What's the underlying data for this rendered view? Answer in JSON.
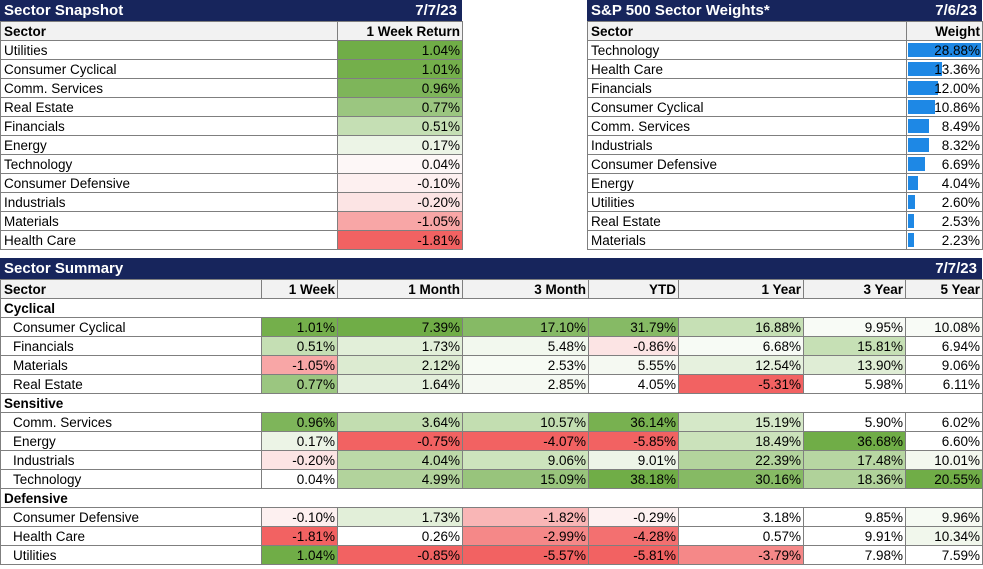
{
  "snapshot": {
    "title": "Sector Snapshot",
    "date": "7/7/23",
    "col_sector": "Sector",
    "col_return": "1 Week Return",
    "rows": [
      {
        "sector": "Utilities",
        "ret": "1.04%",
        "color": "#70ad47"
      },
      {
        "sector": "Consumer Cyclical",
        "ret": "1.01%",
        "color": "#74af4b"
      },
      {
        "sector": "Comm. Services",
        "ret": "0.96%",
        "color": "#7eb55a"
      },
      {
        "sector": "Real Estate",
        "ret": "0.77%",
        "color": "#9bc680"
      },
      {
        "sector": "Financials",
        "ret": "0.51%",
        "color": "#c5dfb4"
      },
      {
        "sector": "Energy",
        "ret": "0.17%",
        "color": "#ecf4e6"
      },
      {
        "sector": "Technology",
        "ret": "0.04%",
        "color": "#fdf7f7"
      },
      {
        "sector": "Consumer Defensive",
        "ret": "-0.10%",
        "color": "#fdf0f0"
      },
      {
        "sector": "Industrials",
        "ret": "-0.20%",
        "color": "#fce4e4"
      },
      {
        "sector": "Materials",
        "ret": "-1.05%",
        "color": "#f8a6a6"
      },
      {
        "sector": "Health Care",
        "ret": "-1.81%",
        "color": "#f26262"
      }
    ]
  },
  "weights": {
    "title": "S&P 500 Sector Weights*",
    "date": "7/6/23",
    "col_sector": "Sector",
    "col_weight": "Weight",
    "bar_color": "#1e88e5",
    "rows": [
      {
        "sector": "Technology",
        "weight": "28.88%",
        "value": 28.88
      },
      {
        "sector": "Health Care",
        "weight": "13.36%",
        "value": 13.36
      },
      {
        "sector": "Financials",
        "weight": "12.00%",
        "value": 12.0
      },
      {
        "sector": "Consumer Cyclical",
        "weight": "10.86%",
        "value": 10.86
      },
      {
        "sector": "Comm. Services",
        "weight": "8.49%",
        "value": 8.49
      },
      {
        "sector": "Industrials",
        "weight": "8.32%",
        "value": 8.32
      },
      {
        "sector": "Consumer Defensive",
        "weight": "6.69%",
        "value": 6.69
      },
      {
        "sector": "Energy",
        "weight": "4.04%",
        "value": 4.04
      },
      {
        "sector": "Utilities",
        "weight": "2.60%",
        "value": 2.6
      },
      {
        "sector": "Real Estate",
        "weight": "2.53%",
        "value": 2.53
      },
      {
        "sector": "Materials",
        "weight": "2.23%",
        "value": 2.23
      }
    ]
  },
  "summary": {
    "title": "Sector Summary",
    "date": "7/7/23",
    "headers": [
      "Sector",
      "1 Week",
      "1 Month",
      "3 Month",
      "YTD",
      "1 Year",
      "3 Year",
      "5 Year"
    ],
    "groups": [
      {
        "name": "Cyclical",
        "rows": [
          {
            "sector": "Consumer Cyclical",
            "values": [
              "1.01%",
              "7.39%",
              "17.10%",
              "31.79%",
              "16.88%",
              "9.95%",
              "10.08%"
            ],
            "colors": [
              "#74af4b",
              "#70ad47",
              "#86ba65",
              "#86ba65",
              "#c6e0b5",
              "#f8fbf6",
              "#f8fbf6"
            ]
          },
          {
            "sector": "Financials",
            "values": [
              "0.51%",
              "1.73%",
              "5.48%",
              "-0.86%",
              "6.68%",
              "15.81%",
              "6.94%"
            ],
            "colors": [
              "#c5dfb4",
              "#e2efd9",
              "#f2f8ee",
              "#fce4e4",
              "#f7fbf5",
              "#c6e0b5",
              "#ffffff"
            ]
          },
          {
            "sector": "Materials",
            "values": [
              "-1.05%",
              "2.12%",
              "2.53%",
              "5.55%",
              "12.54%",
              "13.90%",
              "9.06%"
            ],
            "colors": [
              "#f8a6a6",
              "#dcebd1",
              "#f7fbf4",
              "#f5f9f2",
              "#e6f1de",
              "#dfedd5",
              "#ffffff"
            ]
          },
          {
            "sector": "Real Estate",
            "values": [
              "0.77%",
              "1.64%",
              "2.85%",
              "4.05%",
              "-5.31%",
              "5.98%",
              "6.11%"
            ],
            "colors": [
              "#9bc680",
              "#e3efdb",
              "#f5f9f2",
              "#ffffff",
              "#f26262",
              "#ffffff",
              "#ffffff"
            ]
          }
        ]
      },
      {
        "name": "Sensitive",
        "rows": [
          {
            "sector": "Comm. Services",
            "values": [
              "0.96%",
              "3.64%",
              "10.57%",
              "36.14%",
              "15.19%",
              "5.90%",
              "6.02%"
            ],
            "colors": [
              "#7eb55a",
              "#c2ddb0",
              "#c3deb1",
              "#78b150",
              "#d5e8c8",
              "#ffffff",
              "#ffffff"
            ]
          },
          {
            "sector": "Energy",
            "values": [
              "0.17%",
              "-0.75%",
              "-4.07%",
              "-5.85%",
              "18.49%",
              "36.68%",
              "6.60%"
            ],
            "colors": [
              "#ecf4e6",
              "#f26262",
              "#f26262",
              "#f26262",
              "#cbe2bb",
              "#70ad47",
              "#ffffff"
            ]
          },
          {
            "sector": "Industrials",
            "values": [
              "-0.20%",
              "4.04%",
              "9.06%",
              "9.01%",
              "22.39%",
              "17.48%",
              "10.01%"
            ],
            "colors": [
              "#fce4e4",
              "#bcd9a8",
              "#cde4bd",
              "#edf5e8",
              "#b3d49d",
              "#b7d6a2",
              "#f3f8ef"
            ]
          },
          {
            "sector": "Technology",
            "values": [
              "0.04%",
              "4.99%",
              "15.09%",
              "38.18%",
              "30.16%",
              "18.36%",
              "20.55%"
            ],
            "colors": [
              "#ffffff",
              "#b2d39c",
              "#98c47c",
              "#70ad47",
              "#86ba64",
              "#b0d29a",
              "#70ad47"
            ]
          }
        ]
      },
      {
        "name": "Defensive",
        "rows": [
          {
            "sector": "Consumer Defensive",
            "values": [
              "-0.10%",
              "1.73%",
              "-1.82%",
              "-0.29%",
              "3.18%",
              "9.85%",
              "9.96%"
            ],
            "colors": [
              "#fdf0f0",
              "#e2efd9",
              "#f9b6b6",
              "#fdf1f1",
              "#ffffff",
              "#ffffff",
              "#f6faf3"
            ]
          },
          {
            "sector": "Health Care",
            "values": [
              "-1.81%",
              "0.26%",
              "-2.99%",
              "-4.28%",
              "0.57%",
              "9.91%",
              "10.34%"
            ],
            "colors": [
              "#f26262",
              "#ffffff",
              "#f58888",
              "#f37070",
              "#ffffff",
              "#ffffff",
              "#f1f7ec"
            ]
          },
          {
            "sector": "Utilities",
            "values": [
              "1.04%",
              "-0.85%",
              "-5.57%",
              "-5.81%",
              "-3.79%",
              "7.98%",
              "7.59%"
            ],
            "colors": [
              "#70ad47",
              "#f26262",
              "#f26262",
              "#f26262",
              "#f58888",
              "#ffffff",
              "#ffffff"
            ]
          }
        ]
      }
    ]
  }
}
